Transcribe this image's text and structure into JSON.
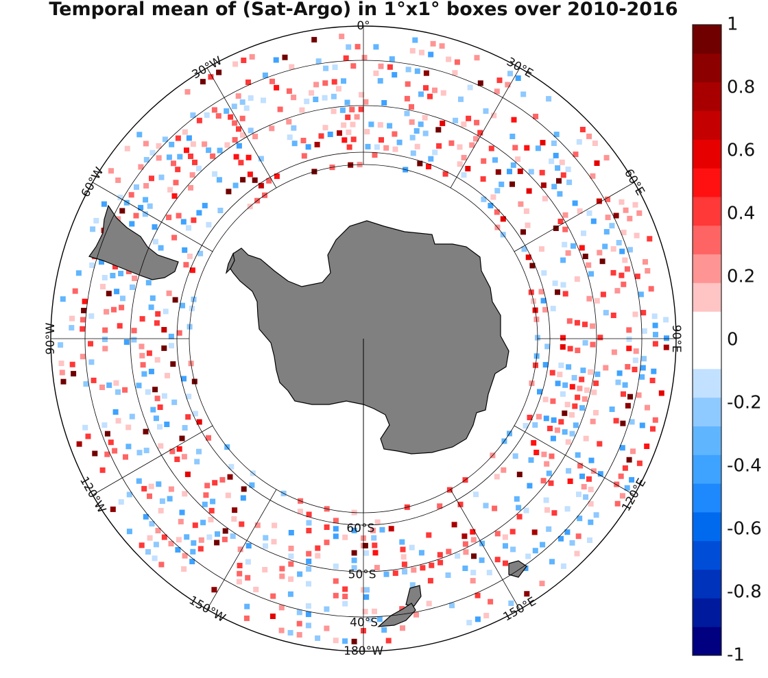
{
  "title": "Temporal mean of (Sat-Argo) in 1°x1° boxes over 2010-2016",
  "projection": "south-polar-stereographic",
  "lat_range": [
    -90,
    -35
  ],
  "meridian_labels": [
    {
      "lon": 0,
      "text": "0°"
    },
    {
      "lon": 30,
      "text": "30°E"
    },
    {
      "lon": 60,
      "text": "60°E"
    },
    {
      "lon": 90,
      "text": "90°E"
    },
    {
      "lon": 120,
      "text": "120°E"
    },
    {
      "lon": 150,
      "text": "150°E"
    },
    {
      "lon": 180,
      "text": "180°W"
    },
    {
      "lon": -150,
      "text": "150°W"
    },
    {
      "lon": -120,
      "text": "120°W"
    },
    {
      "lon": -90,
      "text": "90°W"
    },
    {
      "lon": -60,
      "text": "60°W"
    },
    {
      "lon": -30,
      "text": "30°W"
    }
  ],
  "parallel_labels": [
    {
      "lat": -60,
      "text": "60°S"
    },
    {
      "lat": -50,
      "text": "50°S"
    },
    {
      "lat": -40,
      "text": "40°S"
    }
  ],
  "data_band_lat": [
    -62,
    -35
  ],
  "colorbar": {
    "min": -1,
    "max": 1,
    "levels": 22,
    "tick_labels": [
      "1",
      "0.8",
      "0.6",
      "0.4",
      "0.2",
      "0",
      "-0.2",
      "-0.4",
      "-0.6",
      "-0.8",
      "-1"
    ],
    "colors": [
      "#000080",
      "#001a9e",
      "#0033bb",
      "#004ed7",
      "#006aef",
      "#1e88fd",
      "#3ea2ff",
      "#60b5ff",
      "#8ec9ff",
      "#c2e0ff",
      "#ffffff",
      "#ffffff",
      "#ffc4c4",
      "#ff9494",
      "#ff6464",
      "#ff3838",
      "#ff1111",
      "#e60000",
      "#c40000",
      "#a80000",
      "#8c0000",
      "#700000"
    ]
  },
  "land_color": "#808080"
}
